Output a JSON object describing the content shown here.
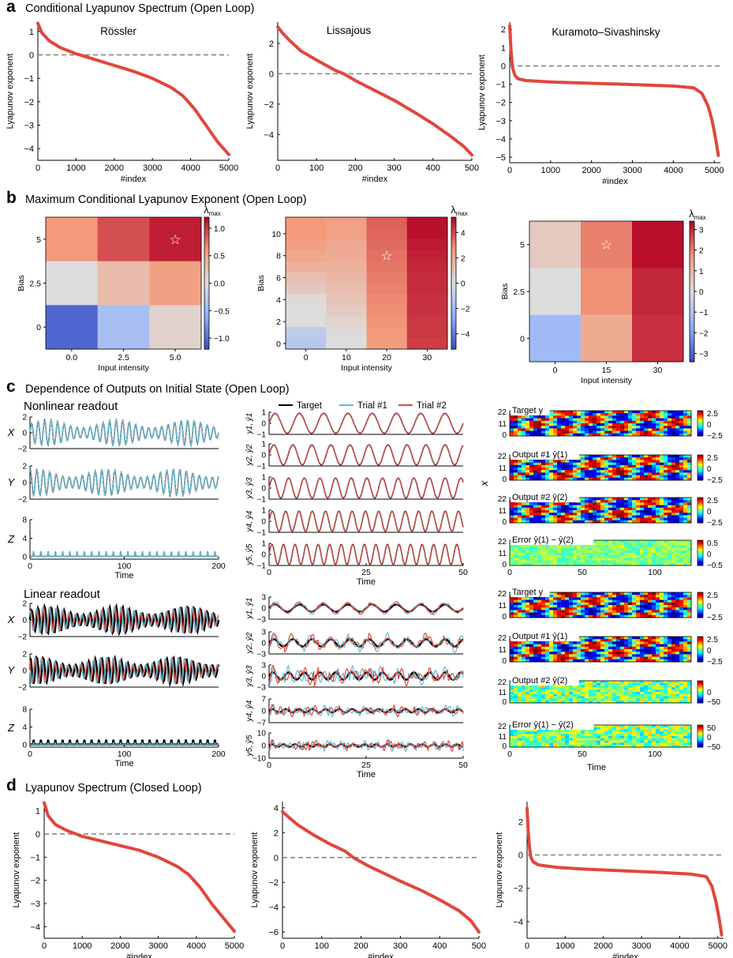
{
  "panel_a": {
    "letter": "a",
    "title": "Conditional Lyapunov Spectrum (Open Loop)"
  },
  "panel_b": {
    "letter": "b",
    "title": "Maximum Conditional Lyapunov Exponent (Open Loop)"
  },
  "panel_c": {
    "letter": "c",
    "title": "Dependence of Outputs on Initial State (Open Loop)",
    "nonlinear_label": "Nonlinear readout",
    "linear_label": "Linear readout"
  },
  "panel_d": {
    "letter": "d",
    "title": "Lyapunov Spectrum (Closed Loop)"
  },
  "colors": {
    "spectrum": "#e0473c",
    "zero_line": "#808080",
    "target": "#000000",
    "trial1": "#5bbcd6",
    "trial2": "#e0473c"
  },
  "chart_data": [
    {
      "id": "a1",
      "type": "line",
      "title": "Rössler",
      "xlabel": "#index",
      "ylabel": "Lyapunov exponent",
      "xlim": [
        0,
        5000
      ],
      "ylim": [
        -4.5,
        1.4
      ],
      "xticks": [
        0,
        1000,
        2000,
        3000,
        4000,
        5000
      ],
      "yticks": [
        1,
        0,
        -1,
        -2,
        -3,
        -4
      ],
      "series": [
        {
          "name": "spectrum",
          "x": [
            0,
            100,
            300,
            600,
            1000,
            1500,
            2000,
            2500,
            3000,
            3500,
            3800,
            4100,
            4400,
            4700,
            5000
          ],
          "y": [
            1.35,
            0.95,
            0.6,
            0.3,
            0.05,
            -0.2,
            -0.45,
            -0.7,
            -1.0,
            -1.4,
            -1.75,
            -2.3,
            -3.0,
            -3.7,
            -4.25
          ]
        }
      ]
    },
    {
      "id": "a2",
      "type": "line",
      "title": "Lissajous",
      "xlabel": "#index",
      "ylabel": "Lyapunov exponent",
      "xlim": [
        0,
        500
      ],
      "ylim": [
        -5.7,
        3.4
      ],
      "xticks": [
        0,
        100,
        200,
        300,
        400,
        500
      ],
      "yticks": [
        2,
        0,
        -2,
        -4
      ],
      "series": [
        {
          "name": "spectrum",
          "x": [
            0,
            10,
            30,
            60,
            100,
            150,
            170,
            200,
            250,
            300,
            350,
            400,
            450,
            480,
            500
          ],
          "y": [
            3.1,
            2.75,
            2.2,
            1.5,
            0.9,
            0.2,
            0.0,
            -0.45,
            -1.1,
            -1.75,
            -2.5,
            -3.3,
            -4.2,
            -4.8,
            -5.35
          ]
        }
      ]
    },
    {
      "id": "a3",
      "type": "line",
      "title": "Kuramoto–Sivashinsky",
      "xlabel": "#index",
      "ylabel": "Lyapunov exponent",
      "xlim": [
        0,
        5150
      ],
      "ylim": [
        -5.3,
        2.4
      ],
      "xticks": [
        0,
        1000,
        2000,
        3000,
        4000,
        5000
      ],
      "yticks": [
        2,
        1,
        0,
        -1,
        -2,
        -3,
        -4,
        -5
      ],
      "series": [
        {
          "name": "spectrum",
          "x": [
            0,
            20,
            60,
            120,
            200,
            400,
            1000,
            2000,
            3000,
            4000,
            4500,
            4700,
            4850,
            4950,
            5050,
            5100
          ],
          "y": [
            2.2,
            1.2,
            0.0,
            -0.5,
            -0.7,
            -0.8,
            -0.88,
            -0.95,
            -1.02,
            -1.1,
            -1.2,
            -1.5,
            -2.2,
            -3.0,
            -4.2,
            -4.9
          ]
        }
      ]
    },
    {
      "id": "b1",
      "type": "heatmap",
      "xlabel": "Input intensity",
      "ylabel": "Bias",
      "colorbar_label": "λmax",
      "x": [
        "0.0",
        "2.5",
        "5.0"
      ],
      "y": [
        "5",
        "2.5",
        "0"
      ],
      "values": [
        [
          0.6,
          0.9,
          1.1
        ],
        [
          0.0,
          0.3,
          0.55
        ],
        [
          -1.05,
          -0.4,
          0.1
        ]
      ],
      "vmin": -1.2,
      "vmax": 1.2,
      "colorbar_ticks": [
        "1.0",
        "0.5",
        "0.0",
        "−0.5",
        "−1.0"
      ],
      "colorbar_values": [
        1.0,
        0.5,
        0.0,
        -0.5,
        -1.0
      ],
      "star": [
        0,
        2
      ],
      "star_glyph": "☆"
    },
    {
      "id": "b2",
      "type": "heatmap",
      "xlabel": "Input intensity",
      "ylabel": "Bias",
      "colorbar_label": "λmax",
      "x": [
        "0",
        "10",
        "20",
        "30"
      ],
      "y": [
        "11",
        "10",
        "9",
        "8",
        "7",
        "6",
        "5",
        "4",
        "3",
        "2",
        "1",
        "0"
      ],
      "yticks": [
        "10",
        "8",
        "6",
        "4",
        "2",
        "0"
      ],
      "values": [
        [
          2.6,
          2.4,
          3.6,
          5.0
        ],
        [
          2.6,
          2.3,
          3.5,
          5.0
        ],
        [
          2.4,
          2.0,
          3.4,
          4.8
        ],
        [
          2.1,
          1.9,
          3.3,
          4.7
        ],
        [
          1.7,
          1.7,
          3.2,
          4.6
        ],
        [
          1.2,
          1.5,
          3.1,
          4.5
        ],
        [
          0.8,
          1.2,
          3.0,
          4.5
        ],
        [
          0.2,
          1.0,
          2.9,
          4.4
        ],
        [
          0.0,
          0.7,
          2.8,
          4.4
        ],
        [
          0.0,
          0.4,
          2.7,
          4.3
        ],
        [
          -1.0,
          0.1,
          2.6,
          4.3
        ],
        [
          -1.2,
          0.0,
          2.5,
          4.2
        ]
      ],
      "vmin": -5.2,
      "vmax": 5.2,
      "colorbar_ticks": [
        "4",
        "2",
        "0",
        "−2",
        "−4"
      ],
      "colorbar_values": [
        4,
        2,
        0,
        -2,
        -4
      ],
      "star": [
        3,
        2
      ],
      "star_glyph": "☆"
    },
    {
      "id": "b3",
      "type": "heatmap",
      "xlabel": "Input intensity",
      "ylabel": "Bias",
      "colorbar_label": "λmax",
      "x": [
        "0",
        "15",
        "30"
      ],
      "y": [
        "5",
        "2.5",
        "0"
      ],
      "values": [
        [
          0.5,
          2.0,
          3.3
        ],
        [
          0.0,
          1.8,
          3.0
        ],
        [
          -1.3,
          1.3,
          2.9
        ]
      ],
      "vmin": -3.4,
      "vmax": 3.4,
      "colorbar_ticks": [
        "3",
        "2",
        "1",
        "0",
        "−1",
        "−2",
        "−3"
      ],
      "colorbar_values": [
        3,
        2,
        1,
        0,
        -1,
        -2,
        -3
      ],
      "star": [
        0,
        1
      ],
      "star_glyph": "☆"
    },
    {
      "id": "c_rossler",
      "type": "line",
      "description": "Rössler X/Y/Z time series",
      "xlabel": "Time",
      "xlim": [
        0,
        200
      ],
      "xticks": [
        0,
        100,
        200
      ],
      "rows": [
        {
          "label": "X",
          "ylim": [
            -2,
            2
          ],
          "yticks": [
            2,
            0,
            -2
          ]
        },
        {
          "label": "Y",
          "ylim": [
            -2,
            2
          ],
          "yticks": [
            2,
            0,
            -2
          ]
        },
        {
          "label": "Z",
          "ylim": [
            -0.5,
            8
          ],
          "yticks": [
            8,
            4,
            0
          ]
        }
      ]
    },
    {
      "id": "c_lissajous",
      "type": "line",
      "xlabel": "Time",
      "xlim": [
        0,
        50
      ],
      "xticks": [
        0,
        25,
        50
      ],
      "legend": [
        "Target",
        "Trial #1",
        "Trial #2"
      ],
      "rows_nonlinear": [
        {
          "label": "y1, ŷ1",
          "yticks": [
            1,
            0,
            -1
          ]
        },
        {
          "label": "y2, ŷ2",
          "yticks": [
            1,
            0,
            -1
          ]
        },
        {
          "label": "y3, ŷ3",
          "yticks": [
            1,
            0,
            -1
          ]
        },
        {
          "label": "y4, ŷ4",
          "yticks": [
            1,
            0,
            -1
          ]
        },
        {
          "label": "y5, ŷ5",
          "yticks": [
            1,
            0,
            -1
          ]
        }
      ],
      "rows_linear": [
        {
          "label": "y1, ŷ1",
          "yticks": [
            3,
            0,
            -3
          ]
        },
        {
          "label": "y2, ŷ2",
          "yticks": [
            3,
            0,
            -3
          ]
        },
        {
          "label": "y3, ŷ3",
          "yticks": [
            3,
            0,
            -3
          ]
        },
        {
          "label": "y4, ŷ4",
          "yticks": [
            7,
            0,
            -7
          ]
        },
        {
          "label": "y5, ŷ5",
          "yticks": [
            10,
            0,
            -10
          ]
        }
      ]
    },
    {
      "id": "c_ks",
      "type": "heatmap",
      "xlabel": "Time",
      "ylabel": "x",
      "xlim": [
        0,
        125
      ],
      "xticks": [
        0,
        50,
        100
      ],
      "yticks": [
        22,
        11,
        0
      ],
      "rows_nonlinear": [
        {
          "title": "Target y",
          "cbar": [
            "2.5",
            "0",
            "−2.5"
          ]
        },
        {
          "title": "Output #1 ŷ(1)",
          "cbar": [
            "2.5",
            "0",
            "−2.5"
          ]
        },
        {
          "title": "Output #2 ŷ(2)",
          "cbar": [
            "2.5",
            "0",
            "−2.5"
          ]
        },
        {
          "title": "Error ŷ(1) − ŷ(2)",
          "cbar": [
            "0.5",
            "0",
            "−0.5"
          ]
        }
      ],
      "rows_linear": [
        {
          "title": "Target y",
          "cbar": [
            "2.5",
            "0",
            "−2.5"
          ]
        },
        {
          "title": "Output #1 ŷ(1)",
          "cbar": [
            "2.5",
            "0",
            "−2.5"
          ]
        },
        {
          "title": "Output #2 ŷ(2)",
          "cbar": [
            "0",
            "−50"
          ]
        },
        {
          "title": "Error ŷ(1) − ŷ(2)",
          "cbar": [
            "50",
            "0",
            "−50"
          ]
        }
      ]
    },
    {
      "id": "d1",
      "type": "line",
      "xlabel": "#index",
      "ylabel": "Lyapunov exponent",
      "xlim": [
        0,
        5000
      ],
      "ylim": [
        -4.5,
        1.4
      ],
      "xticks": [
        0,
        1000,
        2000,
        3000,
        4000,
        5000
      ],
      "yticks": [
        1,
        0,
        -1,
        -2,
        -3,
        -4
      ],
      "series": [
        {
          "name": "spectrum",
          "x": [
            0,
            100,
            300,
            600,
            1000,
            1500,
            2000,
            2500,
            3000,
            3500,
            3800,
            4100,
            4400,
            4700,
            5000
          ],
          "y": [
            1.35,
            0.8,
            0.4,
            0.15,
            -0.1,
            -0.3,
            -0.5,
            -0.7,
            -1.0,
            -1.4,
            -1.75,
            -2.3,
            -3.0,
            -3.6,
            -4.2
          ]
        }
      ]
    },
    {
      "id": "d2",
      "type": "line",
      "xlabel": "#index",
      "ylabel": "Lyapunov exponent",
      "xlim": [
        0,
        500
      ],
      "ylim": [
        -6.5,
        4.5
      ],
      "xticks": [
        0,
        100,
        200,
        300,
        400,
        500
      ],
      "yticks": [
        4,
        2,
        0,
        -2,
        -4,
        -6
      ],
      "series": [
        {
          "name": "spectrum",
          "x": [
            0,
            10,
            40,
            80,
            120,
            160,
            180,
            220,
            260,
            300,
            350,
            400,
            450,
            480,
            500
          ],
          "y": [
            3.7,
            3.4,
            2.6,
            1.8,
            1.1,
            0.5,
            0.0,
            -0.7,
            -1.3,
            -1.9,
            -2.6,
            -3.4,
            -4.3,
            -5.1,
            -6.0
          ]
        }
      ]
    },
    {
      "id": "d3",
      "type": "line",
      "xlabel": "#index",
      "ylabel": "Lyapunov exponent",
      "xlim": [
        0,
        5150
      ],
      "ylim": [
        -5.0,
        3.2
      ],
      "xticks": [
        0,
        1000,
        2000,
        3000,
        4000,
        5000
      ],
      "yticks": [
        2,
        0,
        -2,
        -4
      ],
      "series": [
        {
          "name": "spectrum",
          "x": [
            0,
            30,
            80,
            150,
            300,
            800,
            1500,
            2500,
            3500,
            4300,
            4700,
            4850,
            4950,
            5050,
            5100
          ],
          "y": [
            2.8,
            1.4,
            0.0,
            -0.4,
            -0.6,
            -0.75,
            -0.85,
            -0.95,
            -1.05,
            -1.15,
            -1.3,
            -1.9,
            -2.8,
            -4.0,
            -4.8
          ]
        }
      ]
    }
  ]
}
